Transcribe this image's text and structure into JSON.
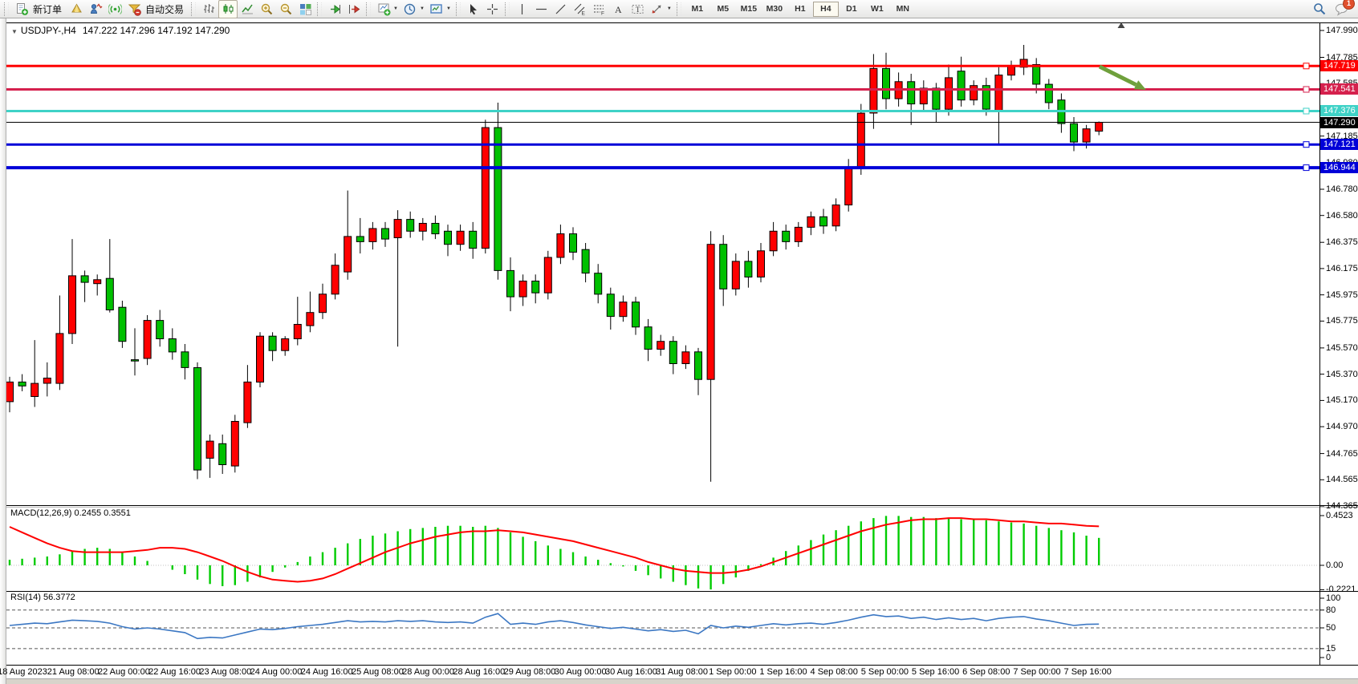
{
  "toolbar": {
    "groups": [
      {
        "name": "trade",
        "items": [
          {
            "icon": "new-order",
            "label": "新订单"
          },
          {
            "icon": "prism",
            "label": ""
          },
          {
            "icon": "market-watch",
            "label": ""
          },
          {
            "icon": "signal",
            "label": ""
          },
          {
            "icon": "auto-trading",
            "label": "自动交易"
          }
        ]
      },
      {
        "name": "chart-type",
        "items": [
          {
            "icon": "bar-chart"
          },
          {
            "icon": "candlestick",
            "active": true
          },
          {
            "icon": "line-chart"
          },
          {
            "icon": "zoom-in"
          },
          {
            "icon": "zoom-out"
          },
          {
            "icon": "tile-windows"
          }
        ]
      },
      {
        "name": "scrolling",
        "items": [
          {
            "icon": "auto-scroll"
          },
          {
            "icon": "chart-shift"
          }
        ]
      },
      {
        "name": "insert",
        "items": [
          {
            "icon": "indicators",
            "dropdown": true
          },
          {
            "icon": "periods",
            "dropdown": true
          },
          {
            "icon": "templates",
            "dropdown": true
          }
        ]
      },
      {
        "name": "pointer",
        "items": [
          {
            "icon": "cursor"
          },
          {
            "icon": "crosshair"
          }
        ]
      },
      {
        "name": "objects",
        "items": [
          {
            "icon": "vline"
          },
          {
            "icon": "hline"
          },
          {
            "icon": "trendline"
          },
          {
            "icon": "channel"
          },
          {
            "icon": "fibonacci"
          },
          {
            "icon": "text"
          },
          {
            "icon": "label"
          },
          {
            "icon": "arrows",
            "dropdown": true
          }
        ]
      }
    ],
    "timeframes": [
      {
        "label": "M1"
      },
      {
        "label": "M5"
      },
      {
        "label": "M15"
      },
      {
        "label": "M30"
      },
      {
        "label": "H1"
      },
      {
        "label": "H4",
        "active": true
      },
      {
        "label": "D1"
      },
      {
        "label": "W1"
      },
      {
        "label": "MN"
      }
    ],
    "right": [
      {
        "icon": "search"
      },
      {
        "icon": "chat",
        "badge": "1"
      }
    ]
  },
  "chart": {
    "title": {
      "dropdown": "▼",
      "symbol_period": "USDJPY-,H4",
      "ohlc": "147.222 147.296 147.192 147.290"
    },
    "price_axis": {
      "ticks": [
        "147.990",
        "147.785",
        "147.585",
        "147.185",
        "146.980",
        "146.780",
        "146.580",
        "146.375",
        "146.175",
        "145.975",
        "145.775",
        "145.570",
        "145.370",
        "145.170",
        "144.970",
        "144.765",
        "144.565",
        "144.365"
      ]
    },
    "lines": [
      {
        "label": "147.719",
        "price": 147.719,
        "color": "#FF0000",
        "width": 3
      },
      {
        "label": "147.541",
        "price": 147.541,
        "color": "#D5214D",
        "width": 3
      },
      {
        "label": "147.376",
        "price": 147.376,
        "color": "#3FD2C7",
        "width": 3
      },
      {
        "label": "147.290",
        "price": 147.29,
        "color": "#000000",
        "width": 1,
        "type": "bid"
      },
      {
        "label": "147.121",
        "price": 147.121,
        "color": "#0000D8",
        "width": 3
      },
      {
        "label": "146.944",
        "price": 146.944,
        "color": "#0000D8",
        "width": 4
      }
    ],
    "annotation_arrow": {
      "color": "#6FA03C"
    },
    "colors": {
      "bull": "#FF0000",
      "bear": "#00C000",
      "background": "#FFFFFF",
      "macd_hist": "#00CC00",
      "macd_signal": "#FF0000",
      "rsi_line": "#3B77C3"
    }
  },
  "macd": {
    "label": "MACD(12,26,9)",
    "values": "0.2455 0.3551",
    "axis": [
      "0.4523",
      "0.00",
      "-0.2221"
    ]
  },
  "rsi": {
    "label": "RSI(14)",
    "value": "56.3772",
    "axis": [
      "100",
      "80",
      "50",
      "15",
      "0"
    ],
    "levels": [
      80,
      50,
      15
    ]
  },
  "time_axis": {
    "labels": [
      "18 Aug 2023",
      "21 Aug 08:00",
      "22 Aug 00:00",
      "22 Aug 16:00",
      "23 Aug 08:00",
      "24 Aug 00:00",
      "24 Aug 16:00",
      "25 Aug 08:00",
      "28 Aug 00:00",
      "28 Aug 16:00",
      "29 Aug 08:00",
      "30 Aug 00:00",
      "30 Aug 16:00",
      "31 Aug 08:00",
      "1 Sep 00:00",
      "1 Sep 16:00",
      "4 Sep 08:00",
      "5 Sep 00:00",
      "5 Sep 16:00",
      "6 Sep 08:00",
      "7 Sep 00:00",
      "7 Sep 16:00"
    ]
  },
  "chart_data": {
    "type": "candlestick",
    "symbol": "USDJPY",
    "period": "H4",
    "price_range": [
      144.3,
      148.02
    ],
    "macd_range": [
      -0.2221,
      0.4523
    ],
    "rsi_range": [
      0,
      100
    ],
    "candles": [
      [
        145.16,
        145.35,
        145.08,
        145.31
      ],
      [
        145.31,
        145.37,
        145.24,
        145.28
      ],
      [
        145.2,
        145.63,
        145.12,
        145.3
      ],
      [
        145.3,
        145.46,
        145.2,
        145.34
      ],
      [
        145.3,
        145.97,
        145.25,
        145.68
      ],
      [
        145.68,
        146.4,
        145.6,
        146.12
      ],
      [
        146.12,
        146.16,
        145.92,
        146.07
      ],
      [
        146.06,
        146.13,
        145.97,
        146.09
      ],
      [
        146.1,
        146.4,
        145.84,
        145.86
      ],
      [
        145.88,
        145.93,
        145.57,
        145.62
      ],
      [
        145.48,
        145.72,
        145.36,
        145.47
      ],
      [
        145.49,
        145.82,
        145.44,
        145.78
      ],
      [
        145.78,
        145.86,
        145.58,
        145.64
      ],
      [
        145.64,
        145.72,
        145.48,
        145.54
      ],
      [
        145.54,
        145.6,
        145.33,
        145.42
      ],
      [
        145.42,
        145.46,
        144.57,
        144.64
      ],
      [
        144.73,
        144.91,
        144.58,
        144.86
      ],
      [
        144.84,
        144.91,
        144.61,
        144.68
      ],
      [
        144.67,
        145.06,
        144.62,
        145.01
      ],
      [
        145.0,
        145.44,
        144.96,
        145.31
      ],
      [
        145.31,
        145.69,
        145.27,
        145.66
      ],
      [
        145.66,
        145.69,
        145.47,
        145.55
      ],
      [
        145.55,
        145.66,
        145.51,
        145.64
      ],
      [
        145.64,
        145.96,
        145.59,
        145.75
      ],
      [
        145.74,
        146.0,
        145.69,
        145.84
      ],
      [
        145.84,
        146.06,
        145.79,
        145.98
      ],
      [
        145.98,
        146.29,
        145.94,
        146.2
      ],
      [
        146.15,
        146.77,
        146.09,
        146.42
      ],
      [
        146.42,
        146.56,
        146.29,
        146.38
      ],
      [
        146.38,
        146.53,
        146.32,
        146.48
      ],
      [
        146.48,
        146.53,
        146.34,
        146.4
      ],
      [
        146.41,
        146.62,
        145.58,
        146.55
      ],
      [
        146.55,
        146.61,
        146.41,
        146.46
      ],
      [
        146.46,
        146.56,
        146.39,
        146.52
      ],
      [
        146.52,
        146.58,
        146.4,
        146.44
      ],
      [
        146.46,
        146.51,
        146.27,
        146.36
      ],
      [
        146.36,
        146.51,
        146.31,
        146.46
      ],
      [
        146.46,
        146.53,
        146.25,
        146.33
      ],
      [
        146.33,
        147.31,
        146.29,
        147.25
      ],
      [
        147.25,
        147.44,
        146.09,
        146.16
      ],
      [
        146.16,
        146.26,
        145.85,
        145.96
      ],
      [
        145.96,
        146.13,
        145.89,
        146.08
      ],
      [
        146.08,
        146.13,
        145.91,
        145.99
      ],
      [
        145.99,
        146.31,
        145.94,
        146.26
      ],
      [
        146.26,
        146.51,
        146.21,
        146.44
      ],
      [
        146.44,
        146.49,
        146.24,
        146.3
      ],
      [
        146.32,
        146.37,
        146.07,
        146.14
      ],
      [
        146.14,
        146.21,
        145.91,
        145.98
      ],
      [
        145.98,
        146.03,
        145.71,
        145.81
      ],
      [
        145.81,
        145.97,
        145.77,
        145.92
      ],
      [
        145.92,
        145.96,
        145.67,
        145.73
      ],
      [
        145.73,
        145.79,
        145.47,
        145.56
      ],
      [
        145.56,
        145.67,
        145.51,
        145.62
      ],
      [
        145.62,
        145.66,
        145.37,
        145.45
      ],
      [
        145.45,
        145.59,
        145.41,
        145.54
      ],
      [
        145.54,
        145.57,
        145.21,
        145.33
      ],
      [
        145.33,
        146.46,
        144.55,
        146.36
      ],
      [
        146.36,
        146.43,
        145.89,
        146.02
      ],
      [
        146.02,
        146.29,
        145.97,
        146.23
      ],
      [
        146.23,
        146.31,
        146.03,
        146.11
      ],
      [
        146.11,
        146.37,
        146.07,
        146.31
      ],
      [
        146.31,
        146.53,
        146.27,
        146.46
      ],
      [
        146.46,
        146.51,
        146.32,
        146.38
      ],
      [
        146.38,
        146.53,
        146.34,
        146.49
      ],
      [
        146.49,
        146.61,
        146.43,
        146.57
      ],
      [
        146.57,
        146.63,
        146.44,
        146.5
      ],
      [
        146.5,
        146.71,
        146.46,
        146.66
      ],
      [
        146.66,
        147.01,
        146.61,
        146.94
      ],
      [
        146.94,
        147.43,
        146.89,
        147.36
      ],
      [
        147.36,
        147.81,
        147.24,
        147.7
      ],
      [
        147.7,
        147.82,
        147.39,
        147.47
      ],
      [
        147.47,
        147.67,
        147.41,
        147.6
      ],
      [
        147.6,
        147.66,
        147.27,
        147.43
      ],
      [
        147.43,
        147.61,
        147.37,
        147.55
      ],
      [
        147.55,
        147.59,
        147.29,
        147.39
      ],
      [
        147.39,
        147.73,
        147.34,
        147.63
      ],
      [
        147.68,
        147.79,
        147.41,
        147.46
      ],
      [
        147.46,
        147.61,
        147.42,
        147.57
      ],
      [
        147.57,
        147.63,
        147.34,
        147.39
      ],
      [
        147.38,
        147.71,
        147.12,
        147.65
      ],
      [
        147.65,
        147.76,
        147.61,
        147.72
      ],
      [
        147.71,
        147.88,
        147.65,
        147.77
      ],
      [
        147.73,
        147.78,
        147.51,
        147.58
      ],
      [
        147.58,
        147.62,
        147.39,
        147.44
      ],
      [
        147.46,
        147.51,
        147.21,
        147.28
      ],
      [
        147.28,
        147.33,
        147.07,
        147.14
      ],
      [
        147.14,
        147.27,
        147.09,
        147.24
      ],
      [
        147.222,
        147.296,
        147.192,
        147.29
      ]
    ],
    "macd_histogram": [
      0.05,
      0.06,
      0.07,
      0.08,
      0.1,
      0.13,
      0.15,
      0.16,
      0.15,
      0.12,
      0.08,
      0.04,
      0.0,
      -0.04,
      -0.08,
      -0.13,
      -0.17,
      -0.19,
      -0.18,
      -0.15,
      -0.11,
      -0.06,
      -0.02,
      0.03,
      0.08,
      0.12,
      0.16,
      0.2,
      0.24,
      0.27,
      0.29,
      0.31,
      0.33,
      0.34,
      0.35,
      0.36,
      0.36,
      0.35,
      0.36,
      0.34,
      0.3,
      0.26,
      0.22,
      0.18,
      0.15,
      0.12,
      0.08,
      0.05,
      0.02,
      -0.01,
      -0.05,
      -0.09,
      -0.12,
      -0.15,
      -0.18,
      -0.21,
      -0.22,
      -0.17,
      -0.11,
      -0.05,
      0.01,
      0.07,
      0.13,
      0.18,
      0.23,
      0.28,
      0.32,
      0.36,
      0.4,
      0.43,
      0.45,
      0.45,
      0.44,
      0.44,
      0.43,
      0.43,
      0.42,
      0.42,
      0.41,
      0.4,
      0.39,
      0.38,
      0.36,
      0.34,
      0.32,
      0.3,
      0.27,
      0.25
    ],
    "macd_signal": [
      0.35,
      0.3,
      0.25,
      0.2,
      0.16,
      0.13,
      0.12,
      0.12,
      0.12,
      0.12,
      0.13,
      0.14,
      0.16,
      0.16,
      0.15,
      0.12,
      0.08,
      0.04,
      -0.01,
      -0.06,
      -0.1,
      -0.13,
      -0.14,
      -0.15,
      -0.14,
      -0.12,
      -0.08,
      -0.03,
      0.02,
      0.07,
      0.12,
      0.16,
      0.2,
      0.23,
      0.26,
      0.28,
      0.3,
      0.31,
      0.31,
      0.32,
      0.31,
      0.3,
      0.28,
      0.26,
      0.24,
      0.22,
      0.19,
      0.16,
      0.13,
      0.1,
      0.07,
      0.03,
      0.0,
      -0.03,
      -0.05,
      -0.06,
      -0.07,
      -0.07,
      -0.06,
      -0.04,
      -0.01,
      0.03,
      0.07,
      0.11,
      0.15,
      0.19,
      0.23,
      0.27,
      0.31,
      0.34,
      0.37,
      0.39,
      0.41,
      0.42,
      0.42,
      0.43,
      0.43,
      0.42,
      0.42,
      0.41,
      0.4,
      0.4,
      0.39,
      0.38,
      0.38,
      0.37,
      0.36,
      0.3551
    ],
    "rsi_values": [
      54,
      56,
      58,
      57,
      60,
      63,
      62,
      61,
      58,
      52,
      48,
      50,
      48,
      45,
      42,
      32,
      34,
      33,
      38,
      43,
      48,
      47,
      49,
      52,
      54,
      56,
      59,
      62,
      60,
      61,
      60,
      62,
      61,
      62,
      60,
      59,
      60,
      58,
      68,
      74,
      56,
      58,
      56,
      60,
      62,
      59,
      55,
      52,
      49,
      51,
      48,
      45,
      47,
      44,
      46,
      40,
      54,
      50,
      53,
      51,
      54,
      57,
      55,
      57,
      58,
      56,
      59,
      63,
      68,
      72,
      69,
      70,
      66,
      68,
      64,
      67,
      64,
      66,
      62,
      66,
      68,
      69,
      65,
      62,
      58,
      54,
      56,
      56.38
    ]
  }
}
